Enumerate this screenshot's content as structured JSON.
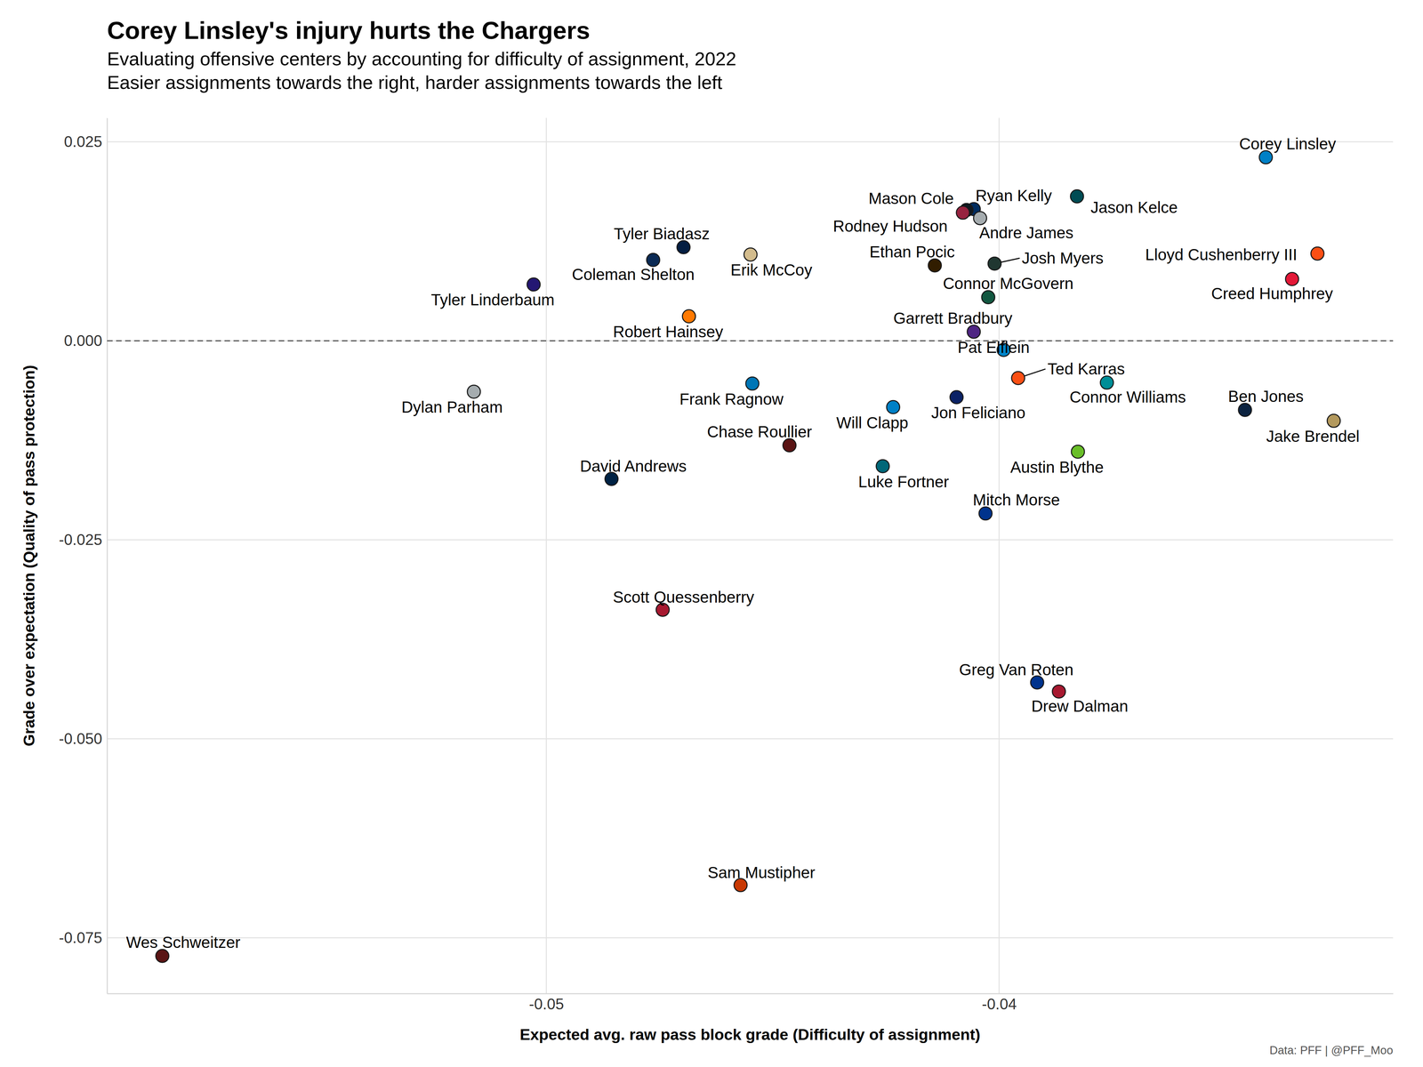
{
  "chart_data": {
    "type": "scatter",
    "title": "Corey Linsley's injury hurts the Chargers",
    "subtitle": [
      "Evaluating offensive centers by accounting for difficulty of assignment, 2022",
      "Easier assignments towards the right, harder assignments towards the left"
    ],
    "x_label": "Expected avg. raw pass block grade (Difficulty of assignment)",
    "y_label": "Grade over expectation (Quality of pass protection)",
    "caption": "Data: PFF | @PFF_Moo",
    "xlim": [
      -0.0597,
      -0.0313
    ],
    "ylim": [
      -0.082,
      0.028
    ],
    "xticks": [
      -0.05,
      -0.04
    ],
    "yticks": [
      0.025,
      {
        "value": 0,
        "label": "0.000"
      },
      -0.025,
      {
        "value": -0.05,
        "label": "-0.050"
      },
      -0.075
    ],
    "grid": true,
    "reference_lines": [
      {
        "y": 0,
        "line_style": "dashed"
      }
    ],
    "labels": [
      "Corey Linsley",
      "Jason Kelce",
      "Ryan Kelly",
      "Mason Cole",
      "Rodney Hudson",
      "Andre James",
      "Tyler Biadasz",
      "Coleman Shelton",
      "Tyler Linderbaum",
      "Erik McCoy",
      "Ethan Pocic",
      "Josh Myers",
      "Lloyd Cushenberry III",
      "Creed Humphrey",
      "Connor McGovern",
      "Robert Hainsey",
      "Garrett Bradbury",
      "Pat Elflein",
      "Dylan Parham",
      "Frank Ragnow",
      "Ted Karras",
      "Connor Williams",
      "Jon Feliciano",
      "Will Clapp",
      "Ben Jones",
      "Jake Brendel",
      "Chase Roullier",
      "Austin Blythe",
      "Luke Fortner",
      "David Andrews",
      "Mitch Morse",
      "Scott Quessenberry",
      "Greg Van Roten",
      "Drew Dalman",
      "Sam Mustipher",
      "Wes Schweitzer"
    ],
    "x": [
      -0.03411,
      -0.03828,
      -0.04056,
      -0.04072,
      -0.0408,
      -0.04042,
      -0.04697,
      -0.04764,
      -0.05028,
      -0.04549,
      -0.04142,
      -0.0401,
      -0.03297,
      -0.03353,
      -0.04024,
      -0.04685,
      -0.04056,
      -0.0399,
      -0.0516,
      -0.04545,
      -0.03958,
      -0.03762,
      -0.04094,
      -0.04234,
      -0.03457,
      -0.03261,
      -0.04463,
      -0.03826,
      -0.04257,
      -0.04856,
      -0.0403,
      -0.04743,
      -0.03916,
      -0.03868,
      -0.04571,
      -0.05848
    ],
    "values": [
      0.02306,
      0.01815,
      0.01655,
      0.01644,
      0.0161,
      0.01541,
      0.01176,
      0.01016,
      0.00708,
      0.01084,
      0.00947,
      0.0097,
      0.01096,
      0.00776,
      0.00548,
      0.00308,
      0.00114,
      -0.00114,
      -0.00639,
      -0.00537,
      -0.00468,
      -0.00525,
      -0.00708,
      -0.00833,
      -0.00868,
      -0.01005,
      -0.01313,
      -0.01393,
      -0.01575,
      -0.01735,
      -0.02169,
      -0.03379,
      -0.04292,
      -0.04406,
      -0.06838,
      -0.07728
    ],
    "colors": [
      "#0080C6",
      "#004C54",
      "#002C5F",
      "#101820",
      "#97233F",
      "#A5ACAF",
      "#041E42",
      "#0B2A55",
      "#241773",
      "#D3BC8D",
      "#311D00",
      "#203731",
      "#FB4F14",
      "#E31837",
      "#125740",
      "#FF7900",
      "#4F2683",
      "#0085CA",
      "#A5ACAF",
      "#0076B6",
      "#FB4F14",
      "#008E97",
      "#0B2265",
      "#0080C6",
      "#0C2340",
      "#B3995D",
      "#5A1414",
      "#69BE28",
      "#006778",
      "#002244",
      "#00338D",
      "#A71930",
      "#00338D",
      "#A71930",
      "#C83803",
      "#5A1414"
    ],
    "marker": "circle"
  }
}
